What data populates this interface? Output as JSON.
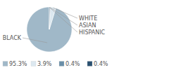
{
  "chart_data": {
    "type": "pie",
    "categories": [
      "BLACK",
      "WHITE",
      "ASIAN",
      "HISPANIC"
    ],
    "values": [
      95.3,
      3.9,
      0.4,
      0.4
    ],
    "colors": [
      "#a0b8c8",
      "#dce8f0",
      "#6a8fa8",
      "#2a5070"
    ],
    "value_labels": [
      "95.3%",
      "3.9%",
      "0.4%",
      "0.4%"
    ],
    "legend": "lower left"
  }
}
